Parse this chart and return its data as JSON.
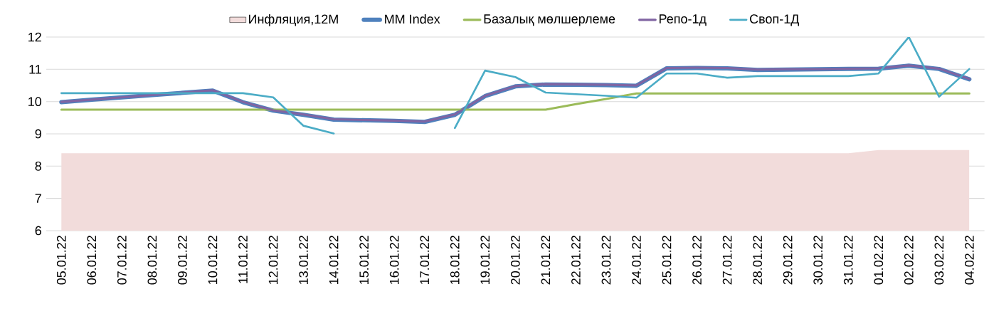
{
  "chart_data": {
    "type": "line",
    "categories": [
      "05.01.22",
      "06.01.22",
      "07.01.22",
      "08.01.22",
      "09.01.22",
      "10.01.22",
      "11.01.22",
      "12.01.22",
      "13.01.22",
      "14.01.22",
      "15.01.22",
      "16.01.22",
      "17.01.22",
      "18.01.22",
      "19.01.22",
      "20.01.22",
      "21.01.22",
      "22.01.22",
      "23.01.22",
      "24.01.22",
      "25.01.22",
      "26.01.22",
      "27.01.22",
      "28.01.22",
      "29.01.22",
      "30.01.22",
      "31.01.22",
      "01.02.22",
      "02.02.22",
      "03.02.22",
      "04.02.22"
    ],
    "series": [
      {
        "name": "Инфляция,12М",
        "type": "area",
        "color": "#f2dcdb",
        "values": [
          8.4,
          8.4,
          8.4,
          8.4,
          8.4,
          8.4,
          8.4,
          8.4,
          8.4,
          8.4,
          8.4,
          8.4,
          8.4,
          8.4,
          8.4,
          8.4,
          8.4,
          8.4,
          8.4,
          8.4,
          8.4,
          8.4,
          8.4,
          8.4,
          8.4,
          8.4,
          8.4,
          8.5,
          8.5,
          8.5,
          8.5
        ]
      },
      {
        "name": "MM Index",
        "color": "#4f81bd",
        "values": [
          9.98,
          10.06,
          10.13,
          10.2,
          10.27,
          10.34,
          9.98,
          9.72,
          9.59,
          9.44,
          9.42,
          9.4,
          9.37,
          9.59,
          10.17,
          10.47,
          10.53,
          10.52,
          10.51,
          10.49,
          11.03,
          11.04,
          11.03,
          10.98,
          10.99,
          11.0,
          11.01,
          11.02,
          11.11,
          11.01,
          10.69
        ]
      },
      {
        "name": "Базалық мөлшерлеме",
        "color": "#9bbb59",
        "values": [
          9.75,
          9.75,
          9.75,
          9.75,
          9.75,
          9.75,
          9.75,
          9.75,
          9.75,
          9.75,
          9.75,
          9.75,
          9.75,
          9.75,
          9.75,
          9.75,
          9.75,
          9.92,
          10.08,
          10.25,
          10.25,
          10.25,
          10.25,
          10.25,
          10.25,
          10.25,
          10.25,
          10.25,
          10.25,
          10.25,
          10.25
        ]
      },
      {
        "name": "Репо-1д",
        "color": "#8064a2",
        "values": [
          9.99,
          10.06,
          10.13,
          10.2,
          10.28,
          10.35,
          9.99,
          9.73,
          9.6,
          9.45,
          9.43,
          9.41,
          9.38,
          9.6,
          10.18,
          10.48,
          10.54,
          10.53,
          10.52,
          10.5,
          11.04,
          11.05,
          11.04,
          10.99,
          11.0,
          11.0,
          11.02,
          11.03,
          11.12,
          11.02,
          10.7
        ]
      },
      {
        "name": "Своп-1Д",
        "color": "#4bacc6",
        "values": [
          10.26,
          10.26,
          10.26,
          10.26,
          10.26,
          10.26,
          10.26,
          10.13,
          9.25,
          9.01,
          null,
          null,
          null,
          9.18,
          10.96,
          10.76,
          10.28,
          10.23,
          10.18,
          10.12,
          10.87,
          10.87,
          10.74,
          10.79,
          10.79,
          10.79,
          10.79,
          10.87,
          12.0,
          10.15,
          11.01
        ]
      }
    ],
    "ylim": [
      6,
      12
    ],
    "yticks": [
      6,
      7,
      8,
      9,
      10,
      11,
      12
    ],
    "grid": "y",
    "legend": "top"
  }
}
